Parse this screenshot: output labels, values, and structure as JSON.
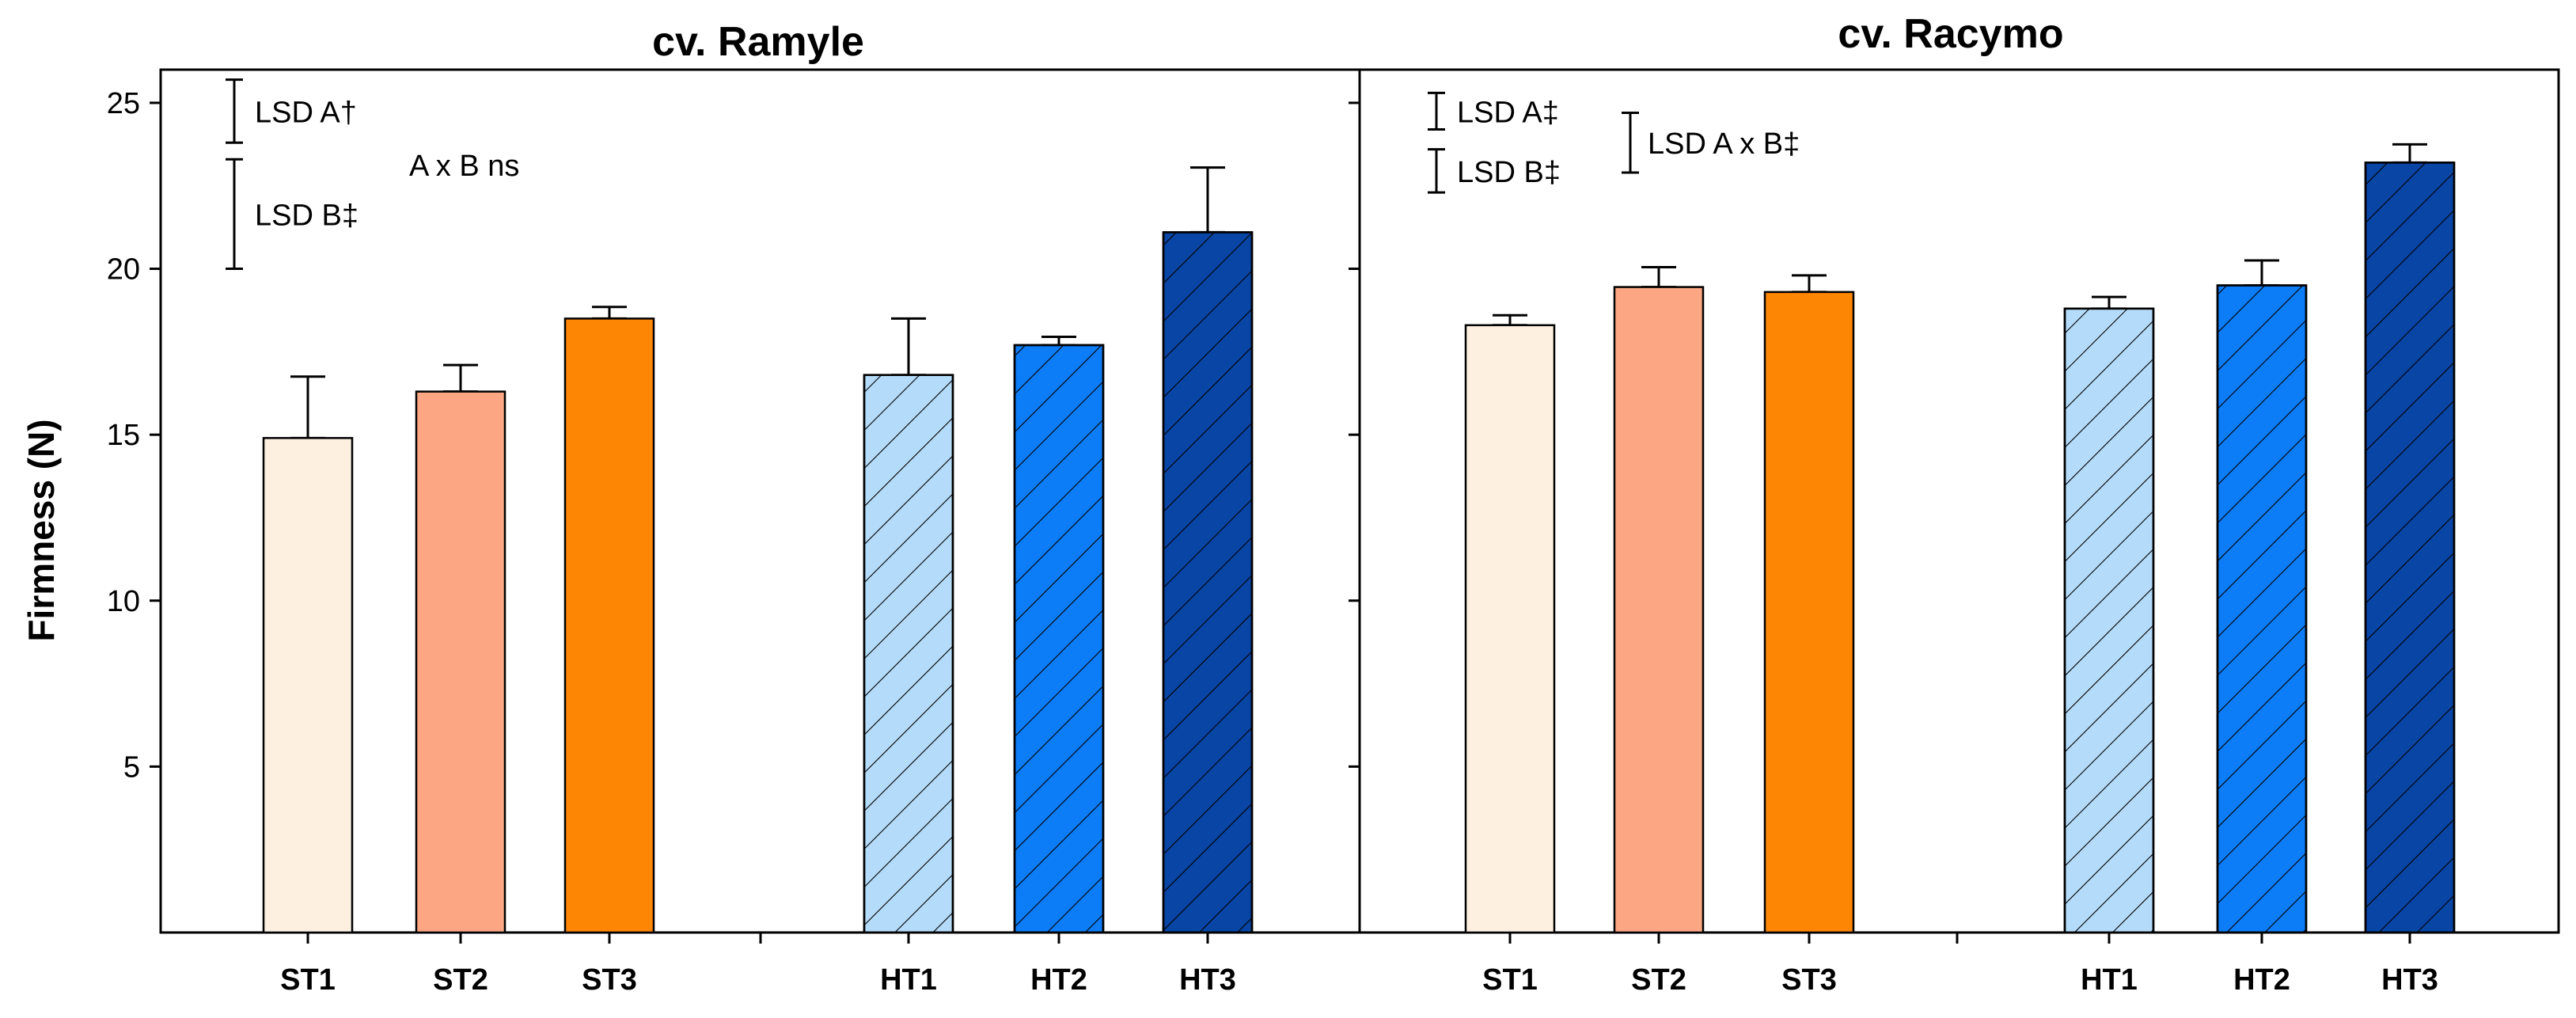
{
  "chart_data": {
    "type": "bar",
    "ylabel": "Firmness (N)",
    "ylim": [
      0,
      26
    ],
    "yticks": [
      5,
      10,
      15,
      20,
      25
    ],
    "colors": {
      "ST1": "#fdf0e1",
      "ST2": "#fca684",
      "ST3": "#fd8604",
      "HT1": "#b4dcfa",
      "HT2": "#0d7cf7",
      "HT3": "#0845a4"
    },
    "panels": [
      {
        "title": "cv. Ramyle",
        "categories": [
          "ST1",
          "ST2",
          "ST3",
          "HT1",
          "HT2",
          "HT3"
        ],
        "values": [
          14.9,
          16.3,
          18.5,
          16.8,
          17.7,
          21.1
        ],
        "errors": [
          1.85,
          0.8,
          0.35,
          1.7,
          0.25,
          1.95
        ],
        "hatched": [
          false,
          false,
          false,
          true,
          true,
          true
        ],
        "lsd": [
          {
            "label": "LSD  A†",
            "low": 23.8,
            "high": 25.7
          },
          {
            "label": "LSD  B‡",
            "low": 20.0,
            "high": 23.3
          }
        ],
        "interaction": "A x B ns"
      },
      {
        "title": "cv. Racymo",
        "categories": [
          "ST1",
          "ST2",
          "ST3",
          "HT1",
          "HT2",
          "HT3"
        ],
        "values": [
          18.3,
          19.45,
          19.3,
          18.8,
          19.5,
          23.2
        ],
        "errors": [
          0.3,
          0.6,
          0.5,
          0.35,
          0.75,
          0.55
        ],
        "hatched": [
          false,
          false,
          false,
          true,
          true,
          true
        ],
        "lsd": [
          {
            "label": "LSD  A‡",
            "low": 24.2,
            "high": 25.3
          },
          {
            "label": "LSD  B‡",
            "low": 22.3,
            "high": 23.6
          }
        ],
        "interaction_lsd": {
          "label": "LSD  A x B‡",
          "low": 22.9,
          "high": 24.7
        }
      }
    ]
  }
}
